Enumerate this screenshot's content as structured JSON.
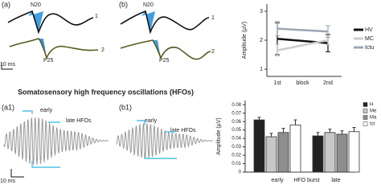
{
  "figure": {
    "panel_a": "(a)",
    "panel_b": "(b)",
    "n20_a": "N20",
    "p25_a": "P25",
    "n20_b": "N20",
    "p25_b": "P25",
    "trace_1_a": "1",
    "trace_2_a": "2",
    "trace_1_b": "1",
    "trace_2_b": "2",
    "scale_top": "10 ms",
    "section_title": "Somatosensory high frequency oscillations (HFOs)",
    "panel_a1": "(a1)",
    "panel_b1": "(b1)",
    "early_a1": "early",
    "late_a1": "late HFOs",
    "early_b1": "early",
    "late_b1": "late HFOs",
    "scale_bottom": "10 ms"
  },
  "chart_data": [
    {
      "type": "line",
      "y_label": "Amplitude (µV)",
      "x_label": "block",
      "categories": [
        "1st",
        "2nd"
      ],
      "ylim": [
        0.75,
        3.25
      ],
      "yticks": [
        1,
        2,
        3
      ],
      "series": [
        {
          "name": "HV",
          "color": "#111111",
          "values": [
            2.05,
            1.9
          ],
          "errors": [
            0.55,
            0.3
          ]
        },
        {
          "name": "MC",
          "color": "#cccccc",
          "values": [
            1.65,
            2.0
          ],
          "errors": [
            0.2,
            0.15
          ]
        },
        {
          "name": "Ictu",
          "color": "#9aa7b4",
          "values": [
            2.4,
            2.3
          ],
          "errors": [
            0.25,
            0.2
          ]
        }
      ]
    },
    {
      "type": "bar",
      "y_label": "Amplitude (µV)",
      "x_label": "HFO burst",
      "categories": [
        "early",
        "late"
      ],
      "ylim": [
        0,
        0.085
      ],
      "yticks": [
        0,
        0.01,
        0.02,
        0.03,
        0.04,
        0.05,
        0.06,
        0.07,
        0.08
      ],
      "series": [
        {
          "name": "H",
          "color": "#222222",
          "values": [
            0.062,
            0.043
          ],
          "errors": [
            0.003,
            0.004
          ]
        },
        {
          "name": "Me",
          "color": "#c8c8c8",
          "values": [
            0.042,
            0.047
          ],
          "errors": [
            0.004,
            0.004
          ]
        },
        {
          "name": "Ma",
          "color": "#8e8e8e",
          "values": [
            0.047,
            0.045
          ],
          "errors": [
            0.005,
            0.004
          ]
        },
        {
          "name": "Ict",
          "color": "#ffffff",
          "values": [
            0.056,
            0.048
          ],
          "errors": [
            0.006,
            0.005
          ]
        }
      ]
    }
  ]
}
